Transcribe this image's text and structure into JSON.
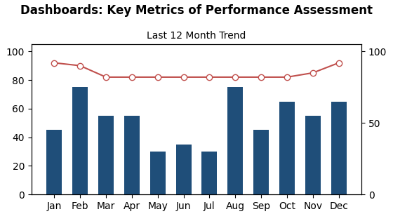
{
  "chart_data": {
    "type": "bar",
    "title": "Dashboards: Key Metrics of Performance Assessment",
    "subtitle": "Last 12 Month Trend",
    "categories": [
      "Jan",
      "Feb",
      "Mar",
      "Apr",
      "May",
      "Jun",
      "Jul",
      "Aug",
      "Sep",
      "Oct",
      "Nov",
      "Dec"
    ],
    "series": [
      {
        "type": "bar",
        "color": "#1f4e79",
        "values": [
          45,
          75,
          55,
          55,
          30,
          35,
          30,
          75,
          45,
          65,
          55,
          65
        ]
      },
      {
        "type": "line",
        "color": "#c0504d",
        "marker": "o",
        "axis": "y2",
        "values": [
          92,
          90,
          82,
          82,
          82,
          82,
          82,
          82,
          82,
          82,
          85,
          92
        ]
      }
    ],
    "ylim": [
      0,
      105
    ],
    "yticks": [
      0,
      20,
      40,
      60,
      80,
      100
    ],
    "y2lim": [
      0,
      105
    ],
    "y2ticks": [
      0,
      50,
      100
    ],
    "grid": false
  }
}
